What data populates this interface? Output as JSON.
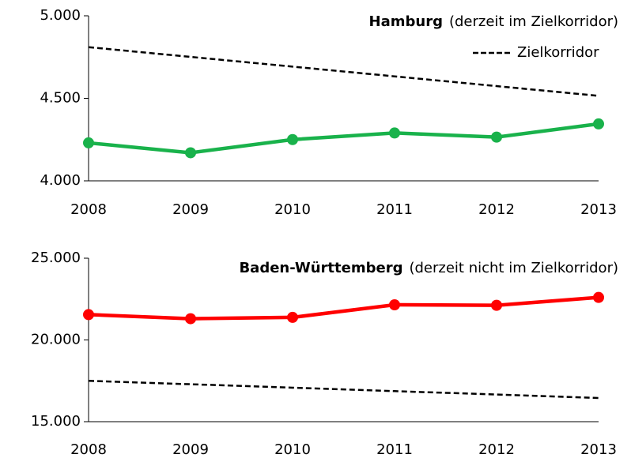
{
  "chart_data": [
    {
      "type": "line",
      "title": "Hamburg",
      "title_note": "(derzeit im Zielkorridor)",
      "categories": [
        "2008",
        "2009",
        "2010",
        "2011",
        "2012",
        "2013"
      ],
      "series": [
        {
          "values": [
            4230,
            4170,
            4250,
            4290,
            4265,
            4345
          ],
          "color": "#19b24b",
          "markers": true
        },
        {
          "name": "Zielkorridor",
          "values": [
            4810,
            4751,
            4692,
            4633,
            4574,
            4515
          ],
          "color": "#000000",
          "dashed": true
        }
      ],
      "ylim": [
        4000,
        5000
      ],
      "yticks": [
        {
          "value": 4000,
          "label": "4.000"
        },
        {
          "value": 4500,
          "label": "4.500"
        },
        {
          "value": 5000,
          "label": "5.000"
        }
      ],
      "legend": true
    },
    {
      "type": "line",
      "title": "Baden-Württemberg",
      "title_note": "(derzeit nicht im Zielkorridor)",
      "categories": [
        "2008",
        "2009",
        "2010",
        "2011",
        "2012",
        "2013"
      ],
      "series": [
        {
          "values": [
            21550,
            21300,
            21380,
            22150,
            22120,
            22600
          ],
          "color": "#ff0000",
          "markers": true
        },
        {
          "values": [
            17500,
            17290,
            17080,
            16870,
            16660,
            16450
          ],
          "color": "#000000",
          "dashed": true
        }
      ],
      "ylim": [
        15000,
        25000
      ],
      "yticks": [
        {
          "value": 15000,
          "label": "15.000"
        },
        {
          "value": 20000,
          "label": "20.000"
        },
        {
          "value": 25000,
          "label": "25.000"
        }
      ],
      "legend": false
    }
  ]
}
